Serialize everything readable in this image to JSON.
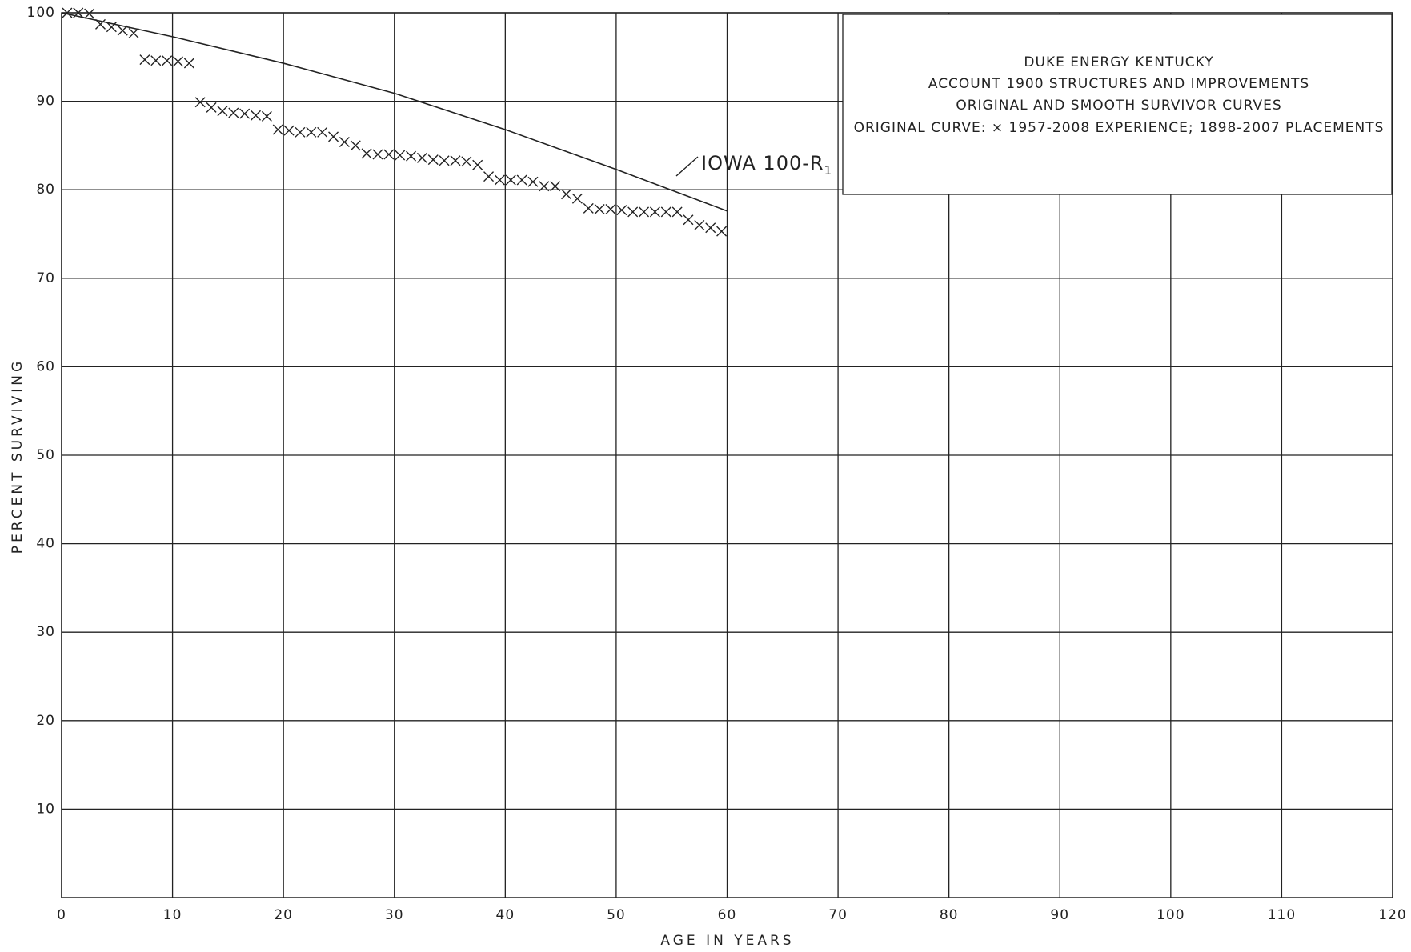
{
  "chart_data": {
    "type": "scatter",
    "title_lines": [
      "DUKE ENERGY KENTUCKY",
      "ACCOUNT 1900 STRUCTURES AND IMPROVEMENTS",
      "ORIGINAL AND SMOOTH SURVIVOR CURVES",
      "ORIGINAL CURVE: × 1957-2008 EXPERIENCE; 1898-2007 PLACEMENTS"
    ],
    "x_label": "AGE IN YEARS",
    "y_label": "PERCENT SURVIVING",
    "annotation": {
      "text": "IOWA 100-R",
      "subscript": "1"
    },
    "xlim": [
      0,
      120
    ],
    "ylim": [
      0,
      100
    ],
    "xticks": [
      0,
      10,
      20,
      30,
      40,
      50,
      60,
      70,
      80,
      90,
      100,
      110,
      120
    ],
    "yticks": [
      10,
      20,
      30,
      40,
      50,
      60,
      70,
      80,
      90,
      100
    ],
    "grid": true,
    "color": "#222222",
    "series": [
      {
        "marker": "x",
        "x": [
          0.5,
          1.5,
          2.5,
          3.5,
          4.5,
          5.5,
          6.5,
          7.5,
          8.5,
          9.5,
          10.5,
          11.5,
          12.5,
          13.5,
          14.5,
          15.5,
          16.5,
          17.5,
          18.5,
          19.5,
          20.5,
          21.5,
          22.5,
          23.5,
          24.5,
          25.5,
          26.5,
          27.5,
          28.5,
          29.5,
          30.5,
          31.5,
          32.5,
          33.5,
          34.5,
          35.5,
          36.5,
          37.5,
          38.5,
          39.5,
          40.5,
          41.5,
          42.5,
          43.5,
          44.5,
          45.5,
          46.5,
          47.5,
          48.5,
          49.5,
          50.5,
          51.5,
          52.5,
          53.5,
          54.5,
          55.5,
          56.5,
          57.5,
          58.5,
          59.5
        ],
        "values": [
          100,
          100,
          99.9,
          98.7,
          98.4,
          98.0,
          97.7,
          94.7,
          94.6,
          94.6,
          94.5,
          94.3,
          89.9,
          89.3,
          88.9,
          88.7,
          88.6,
          88.4,
          88.3,
          86.8,
          86.7,
          86.5,
          86.5,
          86.5,
          86.0,
          85.4,
          85.0,
          84.1,
          84.0,
          84.0,
          83.9,
          83.8,
          83.6,
          83.4,
          83.3,
          83.3,
          83.2,
          82.8,
          81.5,
          81.1,
          81.1,
          81.1,
          80.9,
          80.4,
          80.4,
          79.5,
          79.0,
          77.9,
          77.8,
          77.8,
          77.7,
          77.5,
          77.5,
          77.5,
          77.5,
          77.5,
          76.6,
          76.0,
          75.7,
          75.3
        ]
      },
      {
        "marker": "none",
        "x": [
          0,
          10,
          20,
          30,
          40,
          50,
          60
        ],
        "values": [
          100,
          97.3,
          94.3,
          90.9,
          86.8,
          82.3,
          77.6
        ]
      }
    ]
  }
}
